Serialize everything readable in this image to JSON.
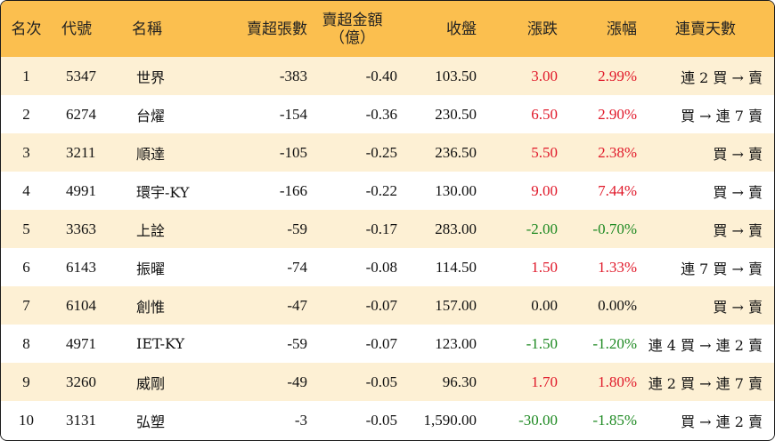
{
  "headers": {
    "rank": "名次",
    "code": "代號",
    "name": "名稱",
    "sell_volume": "賣超張數",
    "sell_amount_line1": "賣超金額",
    "sell_amount_line2": "（億）",
    "close": "收盤",
    "change": "漲跌",
    "change_pct": "漲幅",
    "streak": "連賣天數"
  },
  "rows": [
    {
      "rank": "1",
      "code": "5347",
      "name": "世界",
      "sell_volume": "-383",
      "sell_amount": "-0.40",
      "close": "103.50",
      "change": "3.00",
      "change_pct": "2.99%",
      "streak": "連 2 買 → 賣",
      "trend": "up"
    },
    {
      "rank": "2",
      "code": "6274",
      "name": "台燿",
      "sell_volume": "-154",
      "sell_amount": "-0.36",
      "close": "230.50",
      "change": "6.50",
      "change_pct": "2.90%",
      "streak": "買 → 連 7 賣",
      "trend": "up"
    },
    {
      "rank": "3",
      "code": "3211",
      "name": "順達",
      "sell_volume": "-105",
      "sell_amount": "-0.25",
      "close": "236.50",
      "change": "5.50",
      "change_pct": "2.38%",
      "streak": "買 → 賣",
      "trend": "up"
    },
    {
      "rank": "4",
      "code": "4991",
      "name": "環宇-KY",
      "sell_volume": "-166",
      "sell_amount": "-0.22",
      "close": "130.00",
      "change": "9.00",
      "change_pct": "7.44%",
      "streak": "買 → 賣",
      "trend": "up"
    },
    {
      "rank": "5",
      "code": "3363",
      "name": "上詮",
      "sell_volume": "-59",
      "sell_amount": "-0.17",
      "close": "283.00",
      "change": "-2.00",
      "change_pct": "-0.70%",
      "streak": "買 → 賣",
      "trend": "down"
    },
    {
      "rank": "6",
      "code": "6143",
      "name": "振曜",
      "sell_volume": "-74",
      "sell_amount": "-0.08",
      "close": "114.50",
      "change": "1.50",
      "change_pct": "1.33%",
      "streak": "連 7 買 → 賣",
      "trend": "up"
    },
    {
      "rank": "7",
      "code": "6104",
      "name": "創惟",
      "sell_volume": "-47",
      "sell_amount": "-0.07",
      "close": "157.00",
      "change": "0.00",
      "change_pct": "0.00%",
      "streak": "買 → 賣",
      "trend": "flat"
    },
    {
      "rank": "8",
      "code": "4971",
      "name": "IET-KY",
      "sell_volume": "-59",
      "sell_amount": "-0.07",
      "close": "123.00",
      "change": "-1.50",
      "change_pct": "-1.20%",
      "streak": "連 4 買 → 連 2 賣",
      "trend": "down"
    },
    {
      "rank": "9",
      "code": "3260",
      "name": "威剛",
      "sell_volume": "-49",
      "sell_amount": "-0.05",
      "close": "96.30",
      "change": "1.70",
      "change_pct": "1.80%",
      "streak": "連 2 買 → 連 7 賣",
      "trend": "up"
    },
    {
      "rank": "10",
      "code": "3131",
      "name": "弘塑",
      "sell_volume": "-3",
      "sell_amount": "-0.05",
      "close": "1,590.00",
      "change": "-30.00",
      "change_pct": "-1.85%",
      "streak": "買 → 連 2 賣",
      "trend": "down"
    }
  ],
  "colors": {
    "header_bg": "#fbbf4f",
    "odd_row_bg": "#fdf0d4",
    "even_row_bg": "#ffffff",
    "up": "#e0192a",
    "down": "#1f8a23",
    "flat": "#111111"
  }
}
